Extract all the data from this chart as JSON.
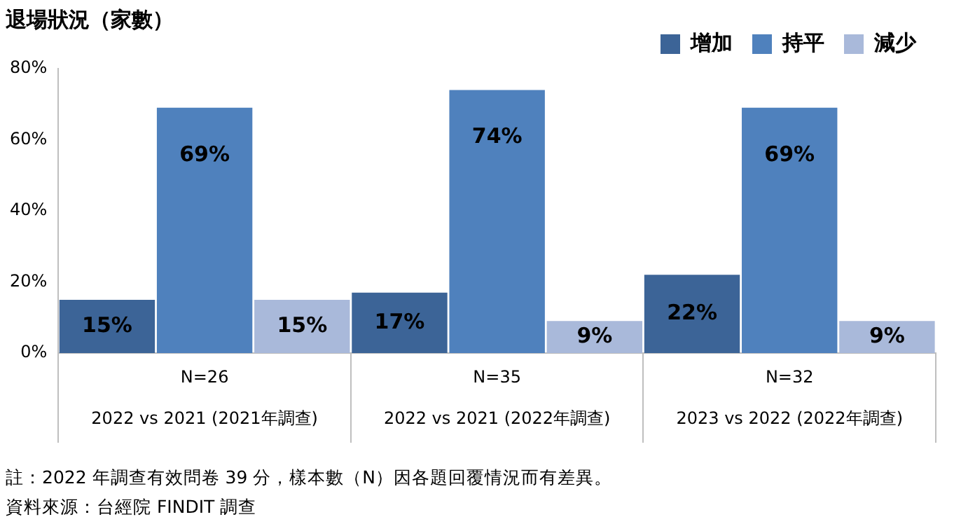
{
  "chart_data": {
    "type": "bar",
    "title": "退場狀況（家數）",
    "categories": [
      "2022 vs 2021 (2021年調查)",
      "2022 vs 2021 (2022年調查)",
      "2023 vs 2022 (2022年調查)"
    ],
    "series": [
      {
        "name": "增加",
        "color": "#3c6497",
        "values": [
          15,
          17,
          22
        ],
        "value_labels": [
          "15%",
          "17%",
          "22%"
        ]
      },
      {
        "name": "持平",
        "color": "#4f81bd",
        "values": [
          69,
          74,
          69
        ],
        "value_labels": [
          "69%",
          "74%",
          "69%"
        ]
      },
      {
        "name": "減少",
        "color": "#a9b9da",
        "values": [
          15,
          9,
          9
        ],
        "value_labels": [
          "15%",
          "9%",
          "9%"
        ]
      }
    ],
    "ylim": [
      0,
      80
    ],
    "yticks": [
      {
        "value": 0,
        "label": "0%"
      },
      {
        "value": 20,
        "label": "20%"
      },
      {
        "value": 40,
        "label": "40%"
      },
      {
        "value": 60,
        "label": "60%"
      },
      {
        "value": 80,
        "label": "80%"
      }
    ],
    "grid": false,
    "legend": "top right",
    "annotations": [
      "N=26",
      "N=35",
      "N=32",
      "註：2022 年調查有效問卷 39 分，樣本數（N）因各題回覆情況而有差異。",
      "資料來源：台經院 FINDIT 調查"
    ]
  }
}
